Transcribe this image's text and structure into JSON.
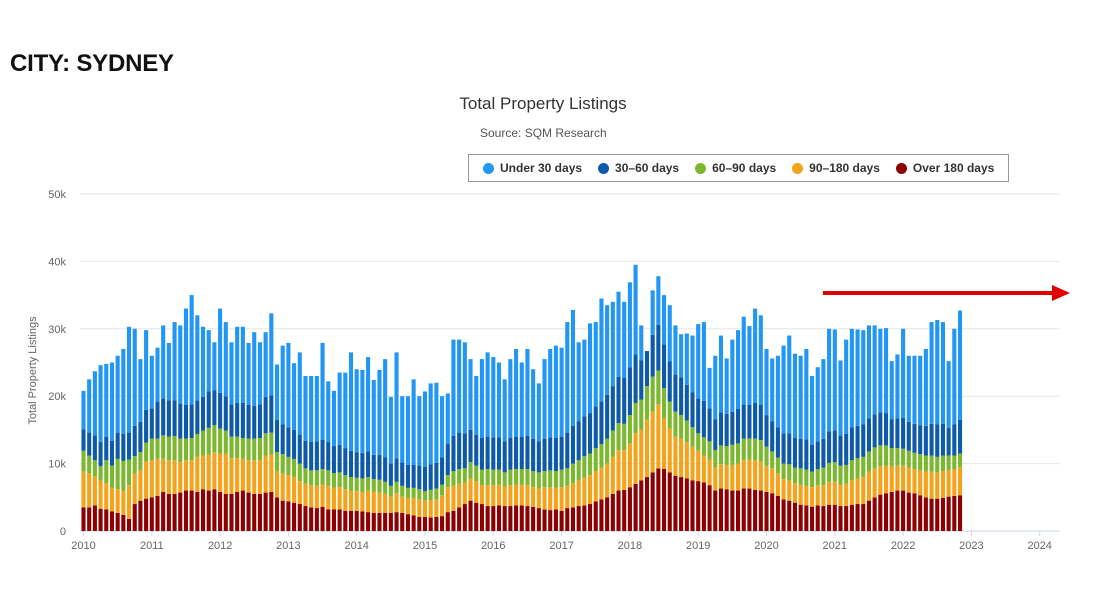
{
  "header": {
    "city_label": "CITY: SYDNEY"
  },
  "chart_data": {
    "type": "bar",
    "stacked": true,
    "title": "Total Property Listings",
    "subtitle": "Source: SQM Research",
    "xlabel": "",
    "ylabel": "Total Property Listings",
    "ylim": [
      0,
      50000
    ],
    "yticks": [
      {
        "value": 0,
        "label": "0"
      },
      {
        "value": 10000,
        "label": "10k"
      },
      {
        "value": 20000,
        "label": "20k"
      },
      {
        "value": 30000,
        "label": "30k"
      },
      {
        "value": 40000,
        "label": "40k"
      },
      {
        "value": 50000,
        "label": "50k"
      }
    ],
    "xticks": [
      "2010",
      "2011",
      "2012",
      "2013",
      "2014",
      "2015",
      "2016",
      "2017",
      "2018",
      "2019",
      "2020",
      "2021",
      "2022",
      "2023",
      "2024"
    ],
    "x_start": "2010-01",
    "x_end": "2024-04",
    "grid": true,
    "legend_position": "top-right",
    "series": [
      {
        "name": "Under 30 days",
        "color": "#2196f3"
      },
      {
        "name": "30-60 days",
        "color": "#0d5ba8"
      },
      {
        "name": "60-90 days",
        "color": "#7cb82f"
      },
      {
        "name": "90-180 days",
        "color": "#f5a31a"
      },
      {
        "name": "Over 180 days",
        "color": "#8b0000"
      }
    ],
    "legend_labels": [
      "Under 30 days",
      "30–60 days",
      "60–90 days",
      "90–180 days",
      "Over 180 days"
    ],
    "totals": [
      20800,
      22500,
      23700,
      24600,
      24800,
      25000,
      26000,
      27000,
      30300,
      30000,
      25500,
      29800,
      26000,
      27200,
      30500,
      27900,
      31000,
      30500,
      33000,
      35000,
      32000,
      30300,
      29800,
      28000,
      33000,
      31000,
      28000,
      30300,
      30300,
      27900,
      29500,
      28000,
      29500,
      32300,
      24700,
      27500,
      27900,
      24900,
      26500,
      23000,
      23000,
      23000,
      27900,
      22200,
      20800,
      23500,
      23500,
      26500,
      24000,
      23900,
      25800,
      22400,
      23900,
      25500,
      19900,
      26500,
      20000,
      20000,
      22500,
      20000,
      20700,
      21900,
      22000,
      20000,
      20400,
      28400,
      28400,
      28000,
      25500,
      23000,
      25500,
      26500,
      25800,
      25000,
      22500,
      25500,
      27000,
      25000,
      27000,
      24000,
      21900,
      25500,
      27000,
      27500,
      27200,
      31000,
      32800,
      28000,
      28400,
      30800,
      31000,
      34500,
      33500,
      34000,
      35500,
      34000,
      36900,
      39500,
      30500,
      26200,
      35700,
      37800,
      35000,
      33500,
      30500,
      29200,
      29300,
      29000,
      30700,
      31000,
      24200,
      26000,
      29000,
      25600,
      28400,
      29800,
      31800,
      30400,
      33000,
      32000,
      27000,
      25600,
      26000,
      27500,
      29000,
      26300,
      26000,
      27000,
      23000,
      24300,
      25500,
      30000,
      29900,
      25300,
      28400,
      30000,
      29900,
      29800,
      30500,
      30500,
      30000,
      30100,
      25200,
      26200,
      30000,
      26000,
      26000,
      26000,
      27000,
      31000,
      31300,
      31000,
      25200,
      30000,
      32700
    ],
    "over180": [
      3500,
      3500,
      3800,
      3300,
      3200,
      2900,
      2700,
      2400,
      1800,
      4000,
      4500,
      4800,
      5000,
      5200,
      5800,
      5500,
      5500,
      5700,
      6000,
      6000,
      5800,
      6200,
      6000,
      6200,
      5800,
      5500,
      5500,
      5800,
      6000,
      5700,
      5500,
      5500,
      5700,
      5800,
      5000,
      4500,
      4400,
      4200,
      4000,
      3700,
      3500,
      3400,
      3600,
      3200,
      3200,
      3200,
      3000,
      3000,
      3000,
      2900,
      2800,
      2700,
      2700,
      2700,
      2700,
      2800,
      2700,
      2500,
      2300,
      2100,
      2100,
      2000,
      2100,
      2200,
      2800,
      3000,
      3500,
      4000,
      4500,
      4200,
      4000,
      3700,
      3700,
      3800,
      3700,
      3700,
      3800,
      3800,
      3700,
      3600,
      3400,
      3200,
      3100,
      3200,
      3000,
      3400,
      3500,
      3700,
      3800,
      4000,
      4400,
      4700,
      5000,
      5500,
      6000,
      6100,
      6500,
      7000,
      7500,
      8000,
      8700,
      9300,
      9200,
      8700,
      8200,
      8000,
      7800,
      7500,
      7400,
      7200,
      6800,
      6000,
      6300,
      6200,
      6000,
      6000,
      6300,
      6300,
      6100,
      6000,
      5800,
      5600,
      5200,
      4700,
      4500,
      4200,
      3900,
      3800,
      3600,
      3800,
      3700,
      3900,
      3900,
      3700,
      3700,
      3900,
      4000,
      4000,
      4500,
      5000,
      5400,
      5600,
      5800,
      6000,
      6000,
      5700,
      5600,
      5300,
      5000,
      4800,
      4800,
      4900,
      5100,
      5200,
      5300
    ],
    "d90_180": [
      5300,
      5100,
      4300,
      4200,
      3900,
      3500,
      3500,
      3500,
      5000,
      4500,
      4500,
      5500,
      5500,
      5500,
      4900,
      5000,
      5000,
      4500,
      4500,
      4500,
      5200,
      5000,
      5300,
      5500,
      5700,
      6000,
      5300,
      5000,
      4700,
      4800,
      5000,
      5000,
      5500,
      5500,
      3900,
      4000,
      3900,
      3800,
      3400,
      3300,
      3300,
      3300,
      3300,
      3500,
      3200,
      3300,
      3200,
      3000,
      2900,
      2900,
      3200,
      3100,
      3000,
      2800,
      2400,
      2800,
      2400,
      2400,
      2600,
      2600,
      2400,
      2600,
      2600,
      3100,
      3700,
      3700,
      3500,
      3200,
      3300,
      3200,
      2800,
      3100,
      3100,
      3100,
      2900,
      3100,
      3100,
      3100,
      3100,
      2900,
      2900,
      3300,
      3400,
      3200,
      3500,
      3300,
      3600,
      3800,
      4100,
      4300,
      4500,
      4700,
      5000,
      5500,
      6000,
      5900,
      6500,
      7500,
      7500,
      8500,
      9000,
      9500,
      7500,
      6500,
      5800,
      5700,
      5400,
      5000,
      4500,
      4000,
      3800,
      3400,
      3600,
      3600,
      3800,
      4000,
      4200,
      4300,
      4400,
      4300,
      3800,
      3700,
      3300,
      3000,
      3000,
      2900,
      3000,
      2900,
      2900,
      3000,
      3100,
      3400,
      3400,
      3200,
      3300,
      3600,
      3800,
      4000,
      4300,
      4300,
      4200,
      4100,
      3800,
      3700,
      3700,
      3700,
      3600,
      3700,
      3800,
      4000,
      3900,
      4000,
      3900,
      4000,
      4200
    ],
    "d60_90": [
      3100,
      2600,
      2400,
      2100,
      3400,
      3300,
      4500,
      4500,
      3800,
      2600,
      2700,
      2800,
      3200,
      3000,
      3500,
      3500,
      3600,
      3500,
      3200,
      3300,
      3400,
      3700,
      4000,
      4000,
      3700,
      3400,
      3200,
      3200,
      3100,
      3200,
      3200,
      3300,
      3300,
      3300,
      2800,
      2900,
      2700,
      2700,
      2600,
      2300,
      2200,
      2300,
      2300,
      2300,
      2200,
      2200,
      2100,
      2000,
      2000,
      2000,
      2000,
      1900,
      1900,
      1800,
      1600,
      1700,
      1600,
      1500,
      1500,
      1500,
      1400,
      1500,
      1600,
      1600,
      1800,
      2200,
      2200,
      2100,
      2400,
      2300,
      2300,
      2400,
      2300,
      2200,
      2100,
      2300,
      2300,
      2300,
      2400,
      2400,
      2400,
      2400,
      2500,
      2500,
      2600,
      2600,
      2900,
      3000,
      3200,
      3200,
      3400,
      3500,
      3700,
      3900,
      4000,
      3900,
      4200,
      4500,
      4500,
      5000,
      5200,
      5000,
      4500,
      4000,
      3700,
      3500,
      3200,
      2900,
      2600,
      2700,
      2700,
      2600,
      2800,
      2800,
      3000,
      3000,
      3200,
      3100,
      3200,
      3200,
      2900,
      2500,
      2400,
      2300,
      2400,
      2300,
      2400,
      2400,
      2300,
      2400,
      2600,
      2800,
      2900,
      2800,
      2800,
      3000,
      3000,
      3000,
      3000,
      3100,
      3100,
      3000,
      2700,
      2600,
      2500,
      2500,
      2400,
      2400,
      2400,
      2400,
      2300,
      2300,
      2200,
      2000,
      2000
    ],
    "d30_60": [
      3200,
      3400,
      3700,
      3600,
      3500,
      3700,
      3900,
      4000,
      4000,
      4500,
      4500,
      4900,
      4500,
      5500,
      5500,
      5400,
      5300,
      5200,
      5000,
      5000,
      5000,
      5000,
      5400,
      5200,
      5300,
      5100,
      4800,
      5000,
      5200,
      5000,
      4900,
      5000,
      5400,
      5500,
      4800,
      4400,
      4400,
      4300,
      4300,
      4100,
      4200,
      4300,
      4300,
      4200,
      4000,
      4100,
      4000,
      3900,
      3800,
      3800,
      3800,
      3600,
      3700,
      3600,
      3300,
      3500,
      3500,
      3400,
      3400,
      3500,
      3600,
      3800,
      3800,
      4000,
      4600,
      5200,
      5400,
      5200,
      4800,
      4600,
      4700,
      4800,
      4800,
      4800,
      4600,
      4700,
      4800,
      4800,
      4900,
      4800,
      4600,
      4800,
      4900,
      4900,
      4900,
      5300,
      5600,
      5800,
      5900,
      6000,
      6200,
      6300,
      6500,
      6600,
      6900,
      6800,
      7100,
      7200,
      5800,
      5200,
      6200,
      6800,
      6500,
      6000,
      5500,
      5600,
      5300,
      5200,
      5200,
      5400,
      4900,
      4600,
      4900,
      4800,
      4900,
      5100,
      5100,
      5000,
      5300,
      5200,
      4700,
      4500,
      4500,
      4500,
      4600,
      4400,
      4400,
      4500,
      4000,
      4100,
      4300,
      4700,
      4700,
      4500,
      4600,
      4900,
      4800,
      4800,
      4900,
      4900,
      4900,
      4800,
      4300,
      4400,
      4600,
      4300,
      4300,
      4300,
      4400,
      4700,
      4800,
      4700,
      4100,
      4600,
      5000
    ]
  }
}
